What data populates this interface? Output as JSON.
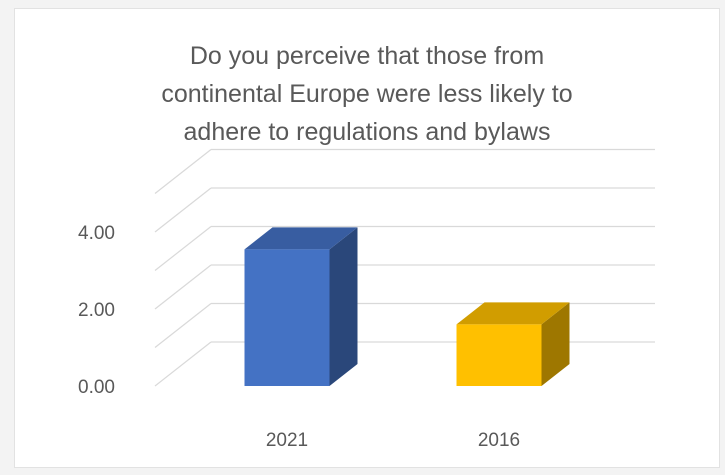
{
  "chart_data": {
    "type": "bar",
    "title": "Do you perceive that those from\ncontinental Europe were less likely to\nadhere to regulations and bylaws",
    "categories": [
      "2021",
      "2016"
    ],
    "values": [
      3.55,
      1.6
    ],
    "colors": [
      "#4472c4",
      "#ffc000"
    ],
    "ylim": [
      0,
      4
    ],
    "yticks": [
      "0.00",
      "2.00",
      "4.00"
    ],
    "ytick_values": [
      0,
      2,
      4
    ],
    "xlabel": "",
    "ylabel": "",
    "grid": true,
    "style": "3d-column",
    "legend": "none"
  }
}
